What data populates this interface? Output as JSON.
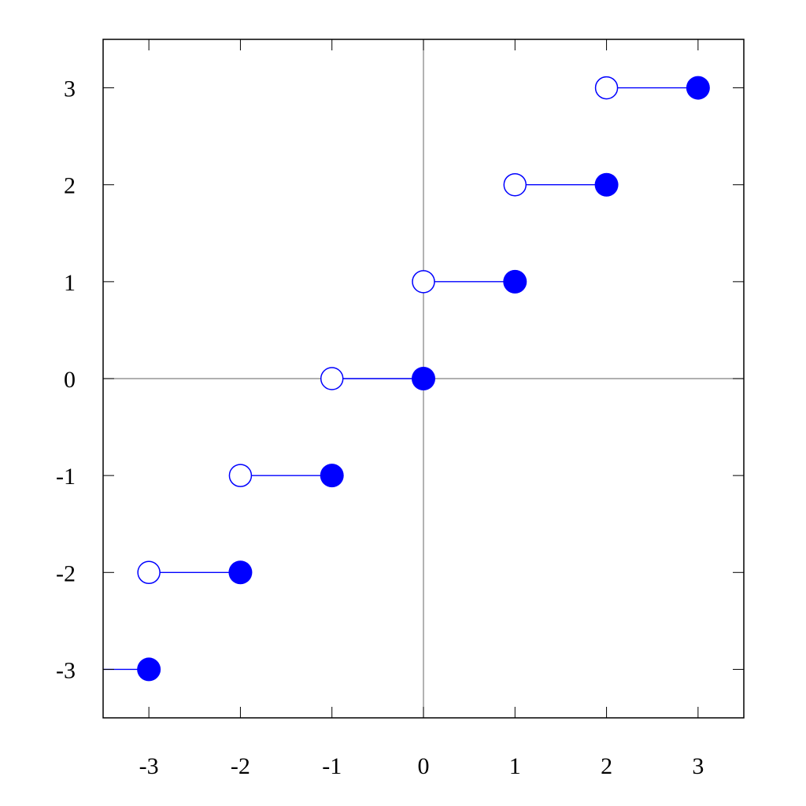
{
  "chart_data": {
    "type": "line",
    "plot_style": "step function with closed right endpoints and open left endpoints",
    "xlim": [
      -3.5,
      3.5
    ],
    "ylim": [
      -3.5,
      3.5
    ],
    "x_ticks": [
      -3,
      -2,
      -1,
      0,
      1,
      2,
      3
    ],
    "y_ticks": [
      -3,
      -2,
      -1,
      0,
      1,
      2,
      3
    ],
    "x_tick_labels": [
      "-3",
      "-2",
      "-1",
      "0",
      "1",
      "2",
      "3"
    ],
    "y_tick_labels": [
      "-3",
      "-2",
      "-1",
      "0",
      "1",
      "2",
      "3"
    ],
    "grid": false,
    "axis_lines_through_origin": true,
    "segments": [
      {
        "x_start": -3.5,
        "x_end": -3,
        "y": -3,
        "open_start": false,
        "closed_end": true
      },
      {
        "x_start": -3,
        "x_end": -2,
        "y": -2,
        "open_start": true,
        "closed_end": true
      },
      {
        "x_start": -2,
        "x_end": -1,
        "y": -1,
        "open_start": true,
        "closed_end": true
      },
      {
        "x_start": -1,
        "x_end": 0,
        "y": 0,
        "open_start": true,
        "closed_end": true
      },
      {
        "x_start": 0,
        "x_end": 1,
        "y": 1,
        "open_start": true,
        "closed_end": true
      },
      {
        "x_start": 1,
        "x_end": 2,
        "y": 2,
        "open_start": true,
        "closed_end": true
      },
      {
        "x_start": 2,
        "x_end": 3,
        "y": 3,
        "open_start": true,
        "closed_end": true
      }
    ],
    "colors": {
      "series": "#0000ff",
      "axes": "#000000",
      "zero_lines": "#808080"
    }
  }
}
